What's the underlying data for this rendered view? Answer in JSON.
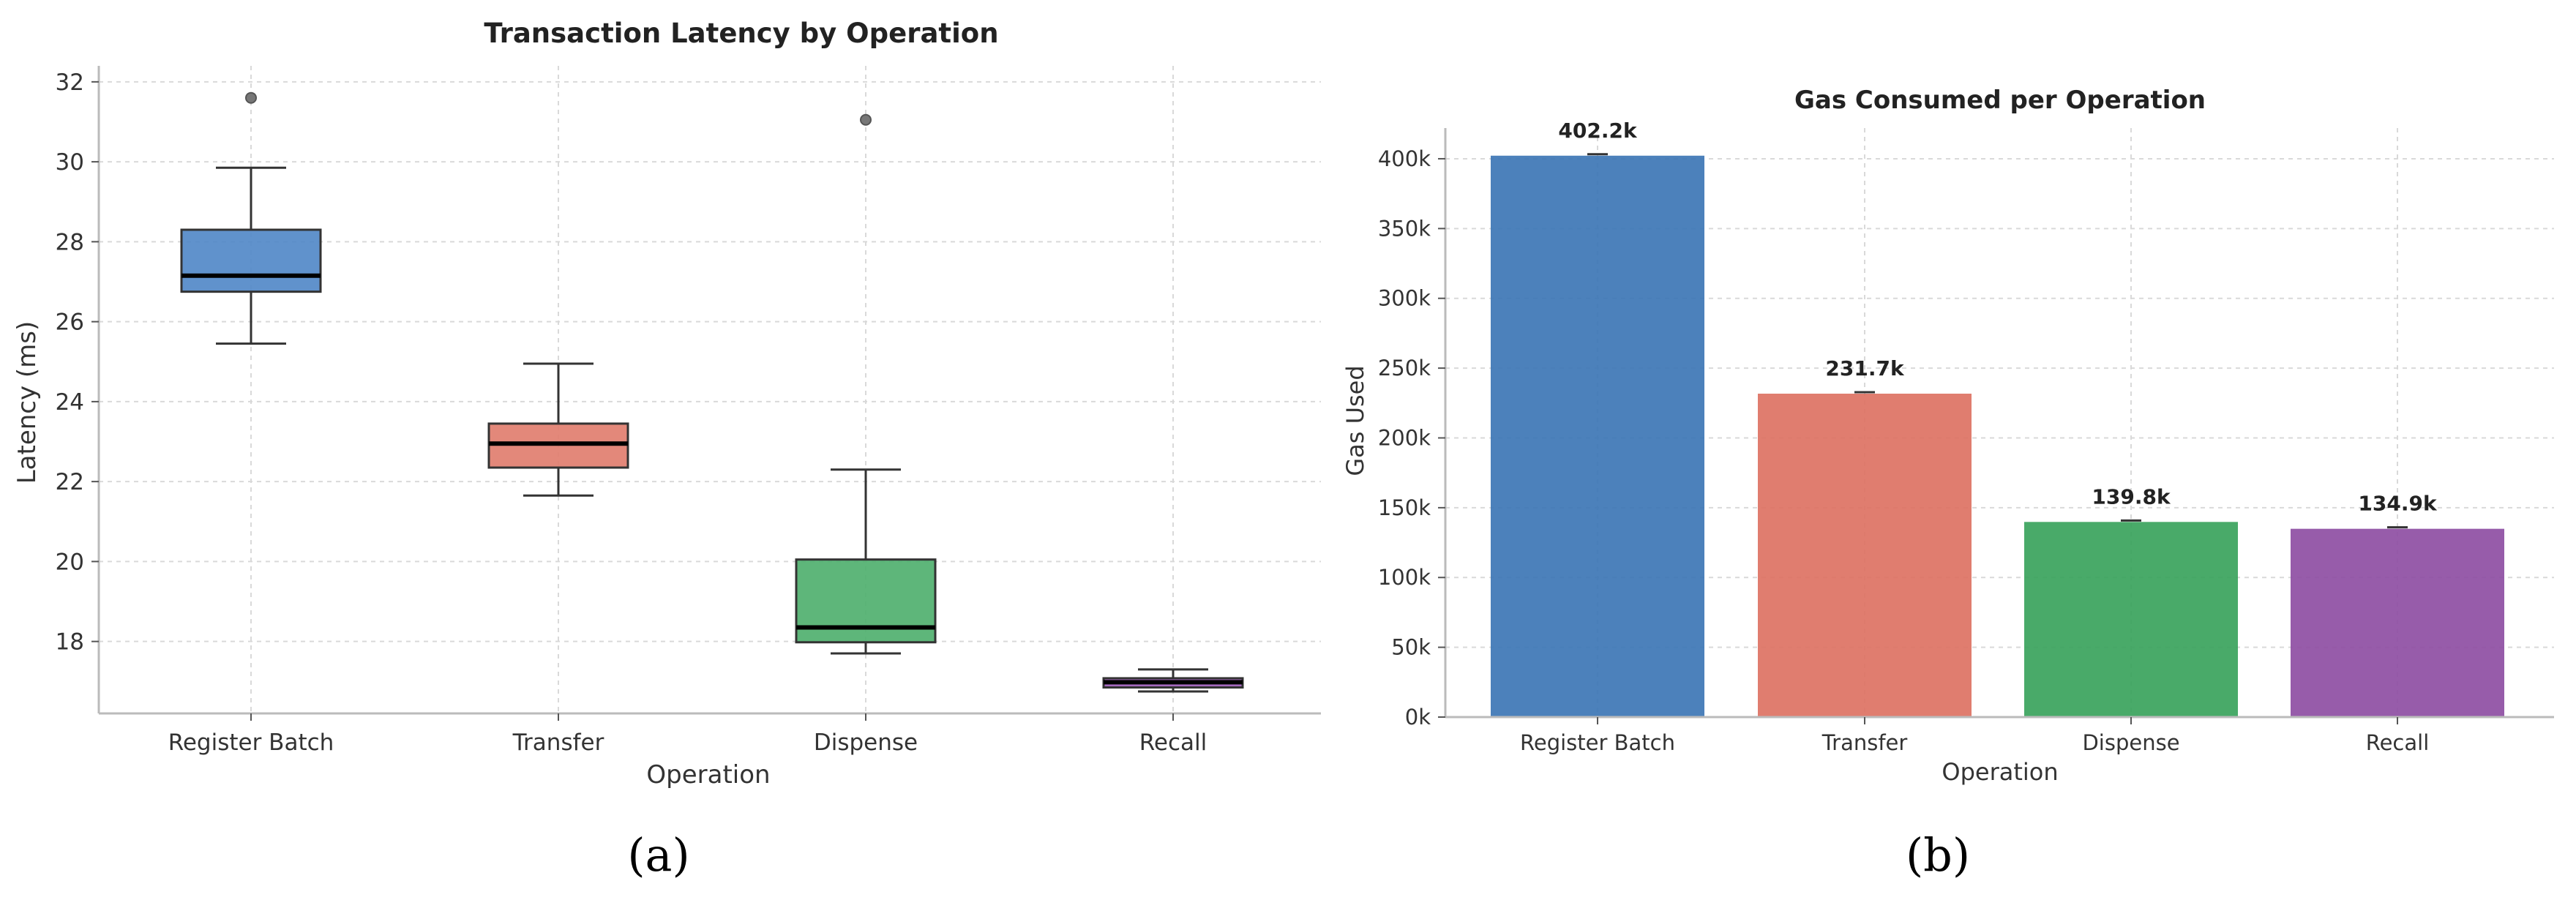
{
  "captions": {
    "a": "(a)",
    "b": "(b)"
  },
  "chart_data": [
    {
      "type": "box",
      "title": "Transaction Latency by Operation",
      "xlabel": "Operation",
      "ylabel": "Latency (ms)",
      "ylim": [
        16.2,
        32.4
      ],
      "yticks": [
        18,
        20,
        22,
        24,
        26,
        28,
        30,
        32
      ],
      "grid": true,
      "categories": [
        "Register Batch",
        "Transfer",
        "Dispense",
        "Recall"
      ],
      "boxes": [
        {
          "name": "Register Batch",
          "color": "#4f86c6",
          "whisker_low": 25.45,
          "q1": 26.75,
          "median": 27.15,
          "q3": 28.3,
          "whisker_high": 29.85,
          "outliers": [
            31.6
          ]
        },
        {
          "name": "Transfer",
          "color": "#e07b6c",
          "whisker_low": 21.65,
          "q1": 22.35,
          "median": 22.95,
          "q3": 23.45,
          "whisker_high": 24.95,
          "outliers": []
        },
        {
          "name": "Dispense",
          "color": "#4cae6c",
          "whisker_low": 17.7,
          "q1": 17.98,
          "median": 18.35,
          "q3": 20.05,
          "whisker_high": 22.3,
          "outliers": [
            31.05
          ]
        },
        {
          "name": "Recall",
          "color": "#9b59b6",
          "whisker_low": 16.75,
          "q1": 16.85,
          "median": 16.98,
          "q3": 17.08,
          "whisker_high": 17.3,
          "outliers": []
        }
      ]
    },
    {
      "type": "bar",
      "title": "Gas Consumed per Operation",
      "xlabel": "Operation",
      "ylabel": "Gas Used",
      "ylim": [
        0,
        422000
      ],
      "yticks": [
        0,
        50000,
        100000,
        150000,
        200000,
        250000,
        300000,
        350000,
        400000
      ],
      "ytick_labels": [
        "0k",
        "50k",
        "100k",
        "150k",
        "200k",
        "250k",
        "300k",
        "350k",
        "400k"
      ],
      "grid": true,
      "categories": [
        "Register Batch",
        "Transfer",
        "Dispense",
        "Recall"
      ],
      "values": [
        402200,
        231700,
        139800,
        134900
      ],
      "value_labels": [
        "402.2k",
        "231.7k",
        "139.8k",
        "134.9k"
      ],
      "colors": [
        "#3d76b5",
        "#dd7263",
        "#3aa35c",
        "#8e4ea3"
      ]
    }
  ]
}
